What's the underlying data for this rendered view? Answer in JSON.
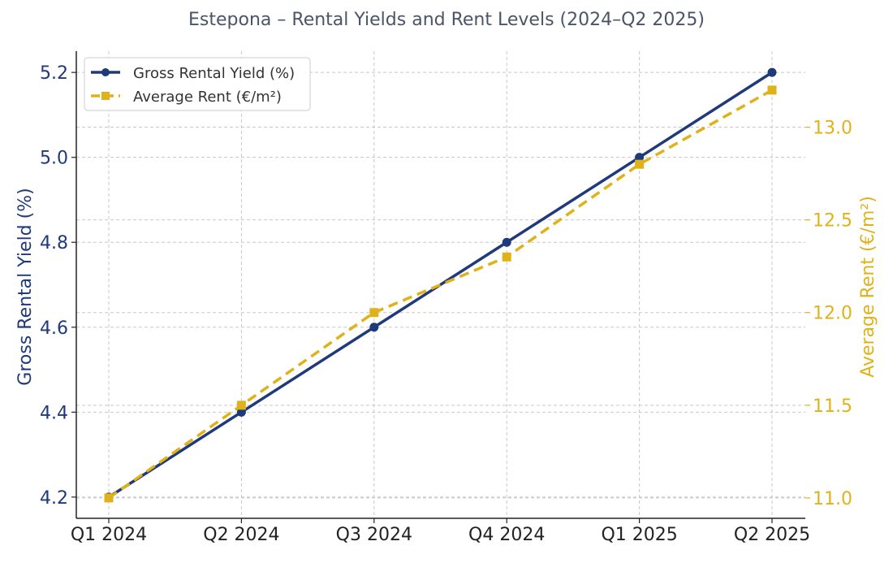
{
  "chart_data": {
    "type": "line",
    "title": "Estepona – Rental Yields and Rent Levels (2024–Q2 2025)",
    "categories": [
      "Q1 2024",
      "Q2 2024",
      "Q3 2024",
      "Q4 2024",
      "Q1 2025",
      "Q2 2025"
    ],
    "series": [
      {
        "name": "Gross Rental Yield (%)",
        "axis": "left",
        "values": [
          4.2,
          4.4,
          4.6,
          4.8,
          5.0,
          5.2
        ],
        "color": "#1f3a7a",
        "line_style": "solid",
        "marker": "circle"
      },
      {
        "name": "Average Rent (€/m²)",
        "axis": "right",
        "values": [
          11.0,
          11.5,
          12.0,
          12.3,
          12.8,
          13.2
        ],
        "color": "#e0b21a",
        "line_style": "dashed",
        "marker": "square"
      }
    ],
    "y_left": {
      "label": "Gross Rental Yield (%)",
      "ylim": [
        4.15,
        5.25
      ],
      "ticks": [
        "4.2",
        "4.4",
        "4.6",
        "4.8",
        "5.0",
        "5.2"
      ],
      "color": "#1f3a7a"
    },
    "y_right": {
      "label": "Average Rent (€/m²)",
      "ylim": [
        10.89,
        13.41
      ],
      "ticks": [
        "11.0",
        "11.5",
        "12.0",
        "12.5",
        "13.0"
      ],
      "color": "#e0b21a"
    },
    "grid": true,
    "legend_position": "top-left"
  }
}
